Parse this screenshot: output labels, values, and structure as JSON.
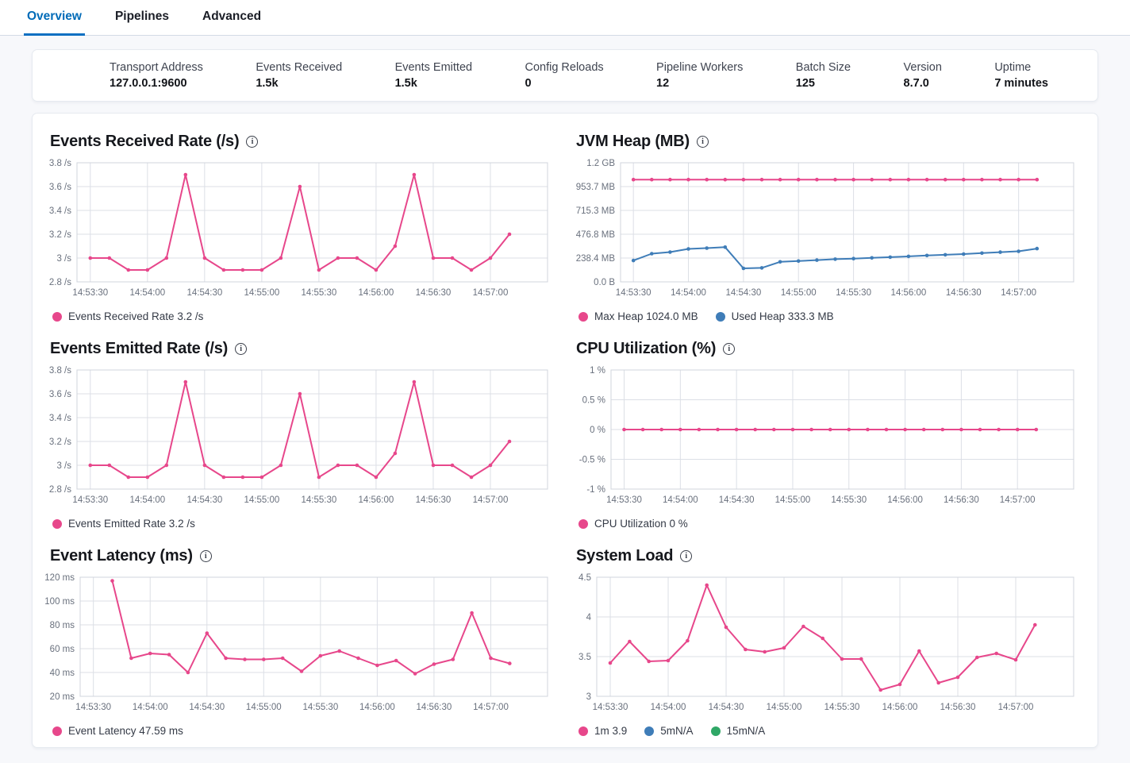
{
  "tabs": [
    {
      "label": "Overview",
      "active": true
    },
    {
      "label": "Pipelines",
      "active": false
    },
    {
      "label": "Advanced",
      "active": false
    }
  ],
  "stats": [
    {
      "label": "Transport Address",
      "value": "127.0.0.1:9600"
    },
    {
      "label": "Events Received",
      "value": "1.5k"
    },
    {
      "label": "Events Emitted",
      "value": "1.5k"
    },
    {
      "label": "Config Reloads",
      "value": "0"
    },
    {
      "label": "Pipeline Workers",
      "value": "12"
    },
    {
      "label": "Batch Size",
      "value": "125"
    },
    {
      "label": "Version",
      "value": "8.7.0"
    },
    {
      "label": "Uptime",
      "value": "7 minutes"
    }
  ],
  "colors": {
    "pink": "#e7478b",
    "blue": "#3f7db8",
    "green": "#2fa766",
    "tab_active": "#006bb8",
    "grid": "#dcdfe6",
    "plot_border": "#d0d4dc",
    "axis_text": "#69707d"
  },
  "x_axis": {
    "domain_s": [
      -7,
      240
    ],
    "step_s": 10,
    "tick_interval_s": 30,
    "tick_labels": [
      "14:53:30",
      "14:54:00",
      "14:54:30",
      "14:55:00",
      "14:55:30",
      "14:56:00",
      "14:56:30",
      "14:57:00"
    ]
  },
  "chart_data": [
    {
      "id": "events-received-rate",
      "type": "line",
      "title": "Events Received Rate (/s)",
      "ylim": [
        2.8,
        3.8
      ],
      "margin_left": 36,
      "yticks": [
        {
          "v": 3.8,
          "label": "3.8 /s"
        },
        {
          "v": 3.6,
          "label": "3.6 /s"
        },
        {
          "v": 3.4,
          "label": "3.4 /s"
        },
        {
          "v": 3.2,
          "label": "3.2 /s"
        },
        {
          "v": 3.0,
          "label": "3 /s"
        },
        {
          "v": 2.8,
          "label": "2.8 /s"
        }
      ],
      "series": [
        {
          "name": "Events Received Rate",
          "color": "#e7478b",
          "start_s": 0,
          "values": [
            3.0,
            3.0,
            2.9,
            2.9,
            3.0,
            3.7,
            3.0,
            2.9,
            2.9,
            2.9,
            3.0,
            3.6,
            2.9,
            3.0,
            3.0,
            2.9,
            3.1,
            3.7,
            3.0,
            3.0,
            2.9,
            3.0,
            3.2
          ]
        }
      ],
      "legend": [
        {
          "color": "#e7478b",
          "label": "Events Received Rate 3.2 /s"
        }
      ]
    },
    {
      "id": "jvm-heap",
      "type": "line",
      "title": "JVM Heap (MB)",
      "ylim": [
        0,
        1192.1
      ],
      "margin_left": 58,
      "yticks": [
        {
          "v": 1192.1,
          "label": "1.2 GB"
        },
        {
          "v": 953.67,
          "label": "953.7 MB"
        },
        {
          "v": 715.26,
          "label": "715.3 MB"
        },
        {
          "v": 476.84,
          "label": "476.8 MB"
        },
        {
          "v": 238.42,
          "label": "238.4 MB"
        },
        {
          "v": 0,
          "label": "0.0 B"
        }
      ],
      "series": [
        {
          "name": "Max Heap",
          "color": "#e7478b",
          "start_s": 0,
          "values": [
            1024,
            1024,
            1024,
            1024,
            1024,
            1024,
            1024,
            1024,
            1024,
            1024,
            1024,
            1024,
            1024,
            1024,
            1024,
            1024,
            1024,
            1024,
            1024,
            1024,
            1024,
            1024,
            1024
          ]
        },
        {
          "name": "Used Heap",
          "color": "#3f7db8",
          "start_s": 0,
          "values": [
            214,
            282,
            298,
            330,
            338,
            347,
            135,
            140,
            200,
            208,
            218,
            227,
            233,
            240,
            247,
            255,
            264,
            271,
            278,
            288,
            297,
            306,
            333
          ]
        }
      ],
      "legend": [
        {
          "color": "#e7478b",
          "label": "Max Heap 1024.0 MB"
        },
        {
          "color": "#3f7db8",
          "label": "Used Heap 333.3 MB"
        }
      ]
    },
    {
      "id": "events-emitted-rate",
      "type": "line",
      "title": "Events Emitted Rate (/s)",
      "ylim": [
        2.8,
        3.8
      ],
      "margin_left": 36,
      "yticks": [
        {
          "v": 3.8,
          "label": "3.8 /s"
        },
        {
          "v": 3.6,
          "label": "3.6 /s"
        },
        {
          "v": 3.4,
          "label": "3.4 /s"
        },
        {
          "v": 3.2,
          "label": "3.2 /s"
        },
        {
          "v": 3.0,
          "label": "3 /s"
        },
        {
          "v": 2.8,
          "label": "2.8 /s"
        }
      ],
      "series": [
        {
          "name": "Events Emitted Rate",
          "color": "#e7478b",
          "start_s": 0,
          "values": [
            3.0,
            3.0,
            2.9,
            2.9,
            3.0,
            3.7,
            3.0,
            2.9,
            2.9,
            2.9,
            3.0,
            3.6,
            2.9,
            3.0,
            3.0,
            2.9,
            3.1,
            3.7,
            3.0,
            3.0,
            2.9,
            3.0,
            3.2
          ]
        }
      ],
      "legend": [
        {
          "color": "#e7478b",
          "label": "Events Emitted Rate 3.2 /s"
        }
      ]
    },
    {
      "id": "cpu-utilization",
      "type": "line",
      "title": "CPU Utilization (%)",
      "ylim": [
        -1,
        1
      ],
      "margin_left": 46,
      "yticks": [
        {
          "v": 1,
          "label": "1 %"
        },
        {
          "v": 0.5,
          "label": "0.5 %"
        },
        {
          "v": 0,
          "label": "0 %"
        },
        {
          "v": -0.5,
          "label": "-0.5 %"
        },
        {
          "v": -1,
          "label": "-1 %"
        }
      ],
      "series": [
        {
          "name": "CPU Utilization",
          "color": "#e7478b",
          "start_s": 0,
          "values": [
            0,
            0,
            0,
            0,
            0,
            0,
            0,
            0,
            0,
            0,
            0,
            0,
            0,
            0,
            0,
            0,
            0,
            0,
            0,
            0,
            0,
            0,
            0
          ]
        }
      ],
      "legend": [
        {
          "color": "#e7478b",
          "label": "CPU Utilization 0 %"
        }
      ]
    },
    {
      "id": "event-latency",
      "type": "line",
      "title": "Event Latency (ms)",
      "ylim": [
        20,
        120
      ],
      "margin_left": 40,
      "yticks": [
        {
          "v": 120,
          "label": "120 ms"
        },
        {
          "v": 100,
          "label": "100 ms"
        },
        {
          "v": 80,
          "label": "80 ms"
        },
        {
          "v": 60,
          "label": "60 ms"
        },
        {
          "v": 40,
          "label": "40 ms"
        },
        {
          "v": 20,
          "label": "20 ms"
        }
      ],
      "series": [
        {
          "name": "Event Latency",
          "color": "#e7478b",
          "start_s": 10,
          "values": [
            117,
            52,
            56,
            55,
            40,
            73,
            52,
            51,
            51,
            52,
            41,
            54,
            58,
            52,
            46,
            50,
            39,
            47,
            51,
            90,
            52,
            47.6
          ]
        }
      ],
      "legend": [
        {
          "color": "#e7478b",
          "label": "Event Latency 47.59 ms"
        }
      ]
    },
    {
      "id": "system-load",
      "type": "line",
      "title": "System Load",
      "ylim": [
        3,
        4.5
      ],
      "margin_left": 28,
      "yticks": [
        {
          "v": 4.5,
          "label": "4.5"
        },
        {
          "v": 4,
          "label": "4"
        },
        {
          "v": 3.5,
          "label": "3.5"
        },
        {
          "v": 3,
          "label": "3"
        }
      ],
      "series": [
        {
          "name": "1m",
          "color": "#e7478b",
          "start_s": 0,
          "values": [
            3.42,
            3.69,
            3.44,
            3.45,
            3.7,
            4.4,
            3.87,
            3.59,
            3.56,
            3.61,
            3.88,
            3.73,
            3.47,
            3.47,
            3.08,
            3.15,
            3.57,
            3.17,
            3.24,
            3.49,
            3.54,
            3.46,
            3.9
          ]
        }
      ],
      "legend": [
        {
          "color": "#e7478b",
          "label": "1m 3.9"
        },
        {
          "color": "#3f7db8",
          "label": "5mN/A"
        },
        {
          "color": "#2fa766",
          "label": "15mN/A"
        }
      ]
    }
  ]
}
